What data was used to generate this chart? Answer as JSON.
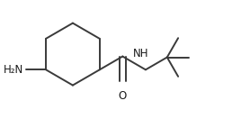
{
  "bg_color": "#ffffff",
  "line_color": "#3a3a3a",
  "text_color": "#1a1a1a",
  "line_width": 1.4,
  "font_size": 8.5,
  "nh2_label": "H₂N",
  "nh_label": "NH",
  "o_label": "O",
  "figsize": [
    2.68,
    1.32
  ],
  "dpi": 100
}
